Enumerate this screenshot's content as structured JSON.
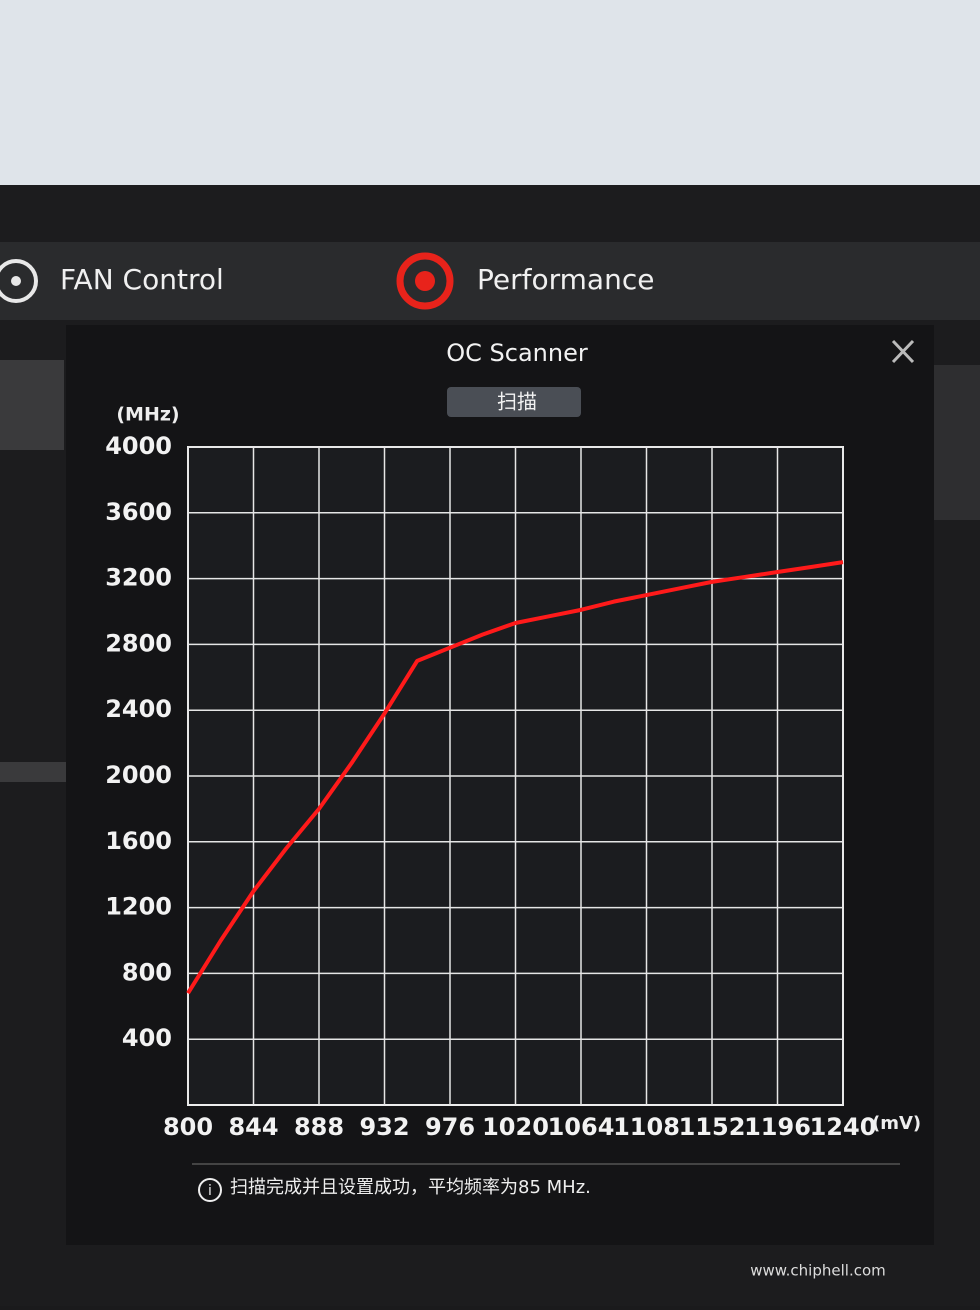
{
  "tabs": [
    "FAN Control",
    "Performance"
  ],
  "dialog": {
    "title": "OC Scanner",
    "scan_button": "扫描",
    "status": "扫描完成并且设置成功，平均频率为85 MHz."
  },
  "watermark": "www.chiphell.com",
  "chart_data": {
    "type": "line",
    "y_unit": "(MHz)",
    "x_unit": "(mV)",
    "x": [
      800,
      822,
      844,
      866,
      888,
      910,
      932,
      954,
      976,
      998,
      1020,
      1042,
      1064,
      1086,
      1108,
      1130,
      1152,
      1174,
      1196,
      1218,
      1240
    ],
    "values": [
      680,
      1000,
      1300,
      1560,
      1800,
      2080,
      2380,
      2700,
      2780,
      2860,
      2930,
      2970,
      3010,
      3060,
      3100,
      3140,
      3180,
      3210,
      3240,
      3270,
      3300
    ],
    "color": "#ff1a1a",
    "xlim": [
      800,
      1240
    ],
    "ylim": [
      0,
      4000
    ],
    "xticks": [
      800,
      844,
      888,
      932,
      976,
      1020,
      1064,
      1108,
      1152,
      1196,
      1240
    ],
    "yticks": [
      400,
      800,
      1200,
      1600,
      2000,
      2400,
      2800,
      3200,
      3600,
      4000
    ],
    "grid": true
  }
}
